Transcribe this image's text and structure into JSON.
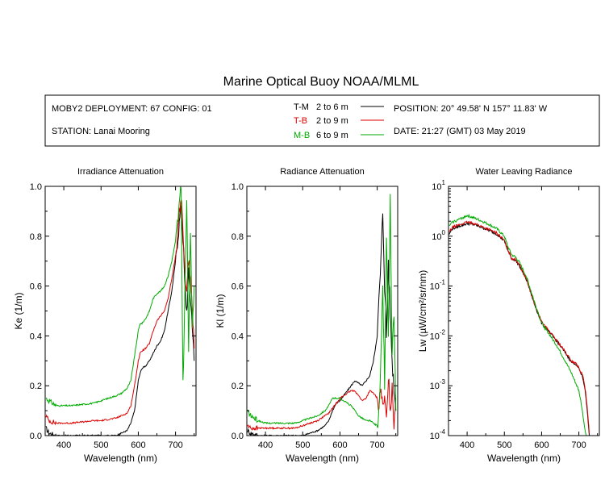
{
  "page": {
    "title": "Marine Optical Buoy NOAA/MLML",
    "info": {
      "deployment": "MOBY2 DEPLOYMENT: 67 CONFIG: 01",
      "station": "STATION: Lanai Mooring",
      "position": "POSITION: 20° 49.58' N   157° 11.83' W",
      "date": "DATE: 21:27 (GMT) 03 May 2019"
    },
    "legend": [
      {
        "code": "T-M",
        "range": "2 to 6  m",
        "color": "#000000"
      },
      {
        "code": "T-B",
        "range": "2 to 9  m",
        "color": "#dd0000"
      },
      {
        "code": "M-B",
        "range": "6 to 9  m",
        "color": "#00aa00"
      }
    ]
  },
  "chart_data": [
    {
      "type": "line",
      "title": "Irradiance Attenuation",
      "xlabel": "Wavelength (nm)",
      "ylabel": "Ke  (1/m)",
      "xlim": [
        350,
        755
      ],
      "ylim": [
        0,
        1.0
      ],
      "xticks": [
        400,
        500,
        600,
        700
      ],
      "yticks": [
        0.0,
        0.2,
        0.4,
        0.6,
        0.8,
        1.0
      ],
      "ytick_labels": [
        "0.0",
        "0.2",
        "0.4",
        "0.6",
        "0.8",
        "1.0"
      ],
      "series": [
        {
          "name": "T-M",
          "color": "#000000",
          "x": [
            352,
            360,
            380,
            400,
            420,
            450,
            480,
            500,
            520,
            540,
            555,
            570,
            580,
            590,
            600,
            605,
            610,
            620,
            630,
            640,
            650,
            660,
            670,
            680,
            690,
            700,
            705,
            710,
            715,
            720,
            725,
            730,
            735,
            740,
            745,
            750
          ],
          "y": [
            0.03,
            0.01,
            0.0,
            0.0,
            0.0,
            0.0,
            0.0,
            0.0,
            0.0,
            0.0,
            0.01,
            0.02,
            0.05,
            0.1,
            0.22,
            0.25,
            0.27,
            0.28,
            0.3,
            0.33,
            0.36,
            0.38,
            0.42,
            0.5,
            0.58,
            0.7,
            0.78,
            0.85,
            0.92,
            0.8,
            0.6,
            0.5,
            0.65,
            0.55,
            0.45,
            0.3
          ]
        },
        {
          "name": "T-B",
          "color": "#dd0000",
          "x": [
            352,
            360,
            380,
            400,
            420,
            450,
            480,
            500,
            520,
            540,
            555,
            570,
            580,
            590,
            600,
            605,
            610,
            620,
            630,
            640,
            650,
            660,
            670,
            680,
            690,
            700,
            705,
            710,
            715,
            720,
            725,
            730,
            735,
            740,
            745,
            750
          ],
          "y": [
            0.08,
            0.06,
            0.05,
            0.05,
            0.05,
            0.055,
            0.06,
            0.06,
            0.065,
            0.07,
            0.08,
            0.09,
            0.12,
            0.2,
            0.3,
            0.33,
            0.34,
            0.35,
            0.37,
            0.42,
            0.46,
            0.48,
            0.5,
            0.55,
            0.63,
            0.72,
            0.8,
            0.9,
            0.96,
            0.82,
            0.65,
            0.58,
            0.72,
            0.6,
            0.5,
            0.35
          ]
        },
        {
          "name": "M-B",
          "color": "#00aa00",
          "x": [
            352,
            360,
            380,
            400,
            420,
            450,
            480,
            500,
            520,
            540,
            555,
            570,
            580,
            590,
            600,
            605,
            610,
            620,
            630,
            640,
            650,
            660,
            670,
            680,
            690,
            700,
            705,
            710,
            715,
            720,
            725,
            730,
            735,
            740,
            745,
            750
          ],
          "y": [
            0.15,
            0.14,
            0.12,
            0.12,
            0.12,
            0.125,
            0.13,
            0.14,
            0.15,
            0.16,
            0.17,
            0.19,
            0.22,
            0.32,
            0.42,
            0.45,
            0.45,
            0.47,
            0.5,
            0.55,
            0.57,
            0.58,
            0.6,
            0.64,
            0.7,
            0.78,
            0.85,
            0.92,
            1.0,
            0.2,
            0.55,
            0.95,
            0.35,
            0.8,
            0.45,
            0.6
          ]
        }
      ]
    },
    {
      "type": "line",
      "title": "Radiance Attenuation",
      "xlabel": "Wavelength (nm)",
      "ylabel": "Kl  (1/m)",
      "xlim": [
        350,
        755
      ],
      "ylim": [
        0,
        1.0
      ],
      "xticks": [
        400,
        500,
        600,
        700
      ],
      "yticks": [
        0.0,
        0.2,
        0.4,
        0.6,
        0.8,
        1.0
      ],
      "ytick_labels": [
        "0.0",
        "0.2",
        "0.4",
        "0.6",
        "0.8",
        "1.0"
      ],
      "series": [
        {
          "name": "T-M",
          "color": "#000000",
          "x": [
            352,
            360,
            380,
            400,
            420,
            450,
            480,
            500,
            520,
            540,
            560,
            570,
            580,
            590,
            600,
            610,
            620,
            630,
            640,
            650,
            660,
            670,
            680,
            690,
            700,
            705,
            710,
            715,
            720,
            725,
            730,
            735,
            740,
            745,
            750
          ],
          "y": [
            0.02,
            0.01,
            0.0,
            0.0,
            0.0,
            0.0,
            0.0,
            0.0,
            0.01,
            0.02,
            0.04,
            0.06,
            0.1,
            0.13,
            0.14,
            0.16,
            0.18,
            0.2,
            0.22,
            0.21,
            0.2,
            0.22,
            0.24,
            0.3,
            0.4,
            0.55,
            0.7,
            0.9,
            0.6,
            0.4,
            0.7,
            0.5,
            0.3,
            0.2,
            0.1
          ]
        },
        {
          "name": "T-B",
          "color": "#dd0000",
          "x": [
            352,
            360,
            380,
            400,
            420,
            450,
            480,
            500,
            520,
            540,
            560,
            570,
            580,
            590,
            600,
            610,
            620,
            630,
            640,
            650,
            660,
            670,
            680,
            690,
            700,
            705,
            710,
            715,
            720,
            725,
            730,
            735,
            740,
            745,
            750
          ],
          "y": [
            0.04,
            0.03,
            0.03,
            0.03,
            0.03,
            0.03,
            0.03,
            0.04,
            0.05,
            0.06,
            0.08,
            0.09,
            0.11,
            0.13,
            0.15,
            0.16,
            0.17,
            0.18,
            0.18,
            0.16,
            0.14,
            0.15,
            0.18,
            0.17,
            0.15,
            0.12,
            0.2,
            0.1,
            0.15,
            0.05,
            0.25,
            0.1,
            0.2,
            0.05,
            0.15
          ]
        },
        {
          "name": "M-B",
          "color": "#00aa00",
          "x": [
            352,
            360,
            380,
            400,
            420,
            450,
            480,
            500,
            520,
            540,
            560,
            570,
            580,
            590,
            600,
            610,
            620,
            630,
            640,
            650,
            660,
            670,
            680,
            690,
            700,
            705,
            710,
            715,
            720,
            725,
            730,
            735,
            740,
            745,
            750
          ],
          "y": [
            0.1,
            0.08,
            0.06,
            0.05,
            0.05,
            0.05,
            0.05,
            0.06,
            0.07,
            0.08,
            0.1,
            0.12,
            0.15,
            0.15,
            0.15,
            0.14,
            0.13,
            0.12,
            0.1,
            0.08,
            0.07,
            0.06,
            0.06,
            0.05,
            0.04,
            0.1,
            0.3,
            0.6,
            0.2,
            0.8,
            0.4,
            0.95,
            0.3,
            0.5,
            0.1
          ]
        }
      ]
    },
    {
      "type": "line",
      "title": "Water Leaving Radiance",
      "xlabel": "Wavelength (nm)",
      "ylabel": "Lw  (µW/cm²/sr/nm)",
      "yscale": "log",
      "xlim": [
        350,
        755
      ],
      "ylim": [
        0.0001,
        10
      ],
      "xticks": [
        400,
        500,
        600,
        700
      ],
      "yticks": [
        0.0001,
        0.001,
        0.01,
        0.1,
        1,
        10
      ],
      "ytick_base": [
        "10",
        "10",
        "10",
        "10",
        "10",
        "10"
      ],
      "ytick_exp": [
        "-4",
        "-3",
        "-2",
        "-1",
        "0",
        "1"
      ],
      "series": [
        {
          "name": "T-M",
          "color": "#000000",
          "x": [
            352,
            360,
            380,
            400,
            420,
            440,
            460,
            480,
            500,
            510,
            520,
            530,
            540,
            560,
            580,
            600,
            620,
            640,
            660,
            680,
            690,
            700,
            710,
            715,
            720,
            725,
            728
          ],
          "y": [
            1.1,
            1.4,
            1.6,
            1.8,
            1.7,
            1.5,
            1.3,
            1.1,
            0.8,
            0.5,
            0.35,
            0.33,
            0.26,
            0.13,
            0.045,
            0.018,
            0.012,
            0.008,
            0.005,
            0.003,
            0.0028,
            0.0022,
            0.0015,
            0.001,
            0.0005,
            0.0002,
            0.0001
          ]
        },
        {
          "name": "T-B",
          "color": "#dd0000",
          "x": [
            352,
            360,
            380,
            400,
            420,
            440,
            460,
            480,
            500,
            510,
            520,
            530,
            540,
            560,
            580,
            600,
            620,
            640,
            660,
            680,
            690,
            700,
            710,
            715,
            720,
            725,
            728
          ],
          "y": [
            1.2,
            1.5,
            1.7,
            1.9,
            1.8,
            1.55,
            1.35,
            1.15,
            0.82,
            0.52,
            0.36,
            0.34,
            0.27,
            0.135,
            0.046,
            0.019,
            0.0125,
            0.0082,
            0.0052,
            0.0031,
            0.0029,
            0.0023,
            0.0016,
            0.0011,
            0.00055,
            0.00022,
            0.00011
          ]
        },
        {
          "name": "M-B",
          "color": "#00aa00",
          "x": [
            352,
            360,
            380,
            400,
            420,
            440,
            460,
            480,
            500,
            510,
            520,
            530,
            540,
            560,
            580,
            600,
            620,
            640,
            660,
            680,
            690,
            700,
            705,
            710,
            715,
            720
          ],
          "y": [
            1.6,
            1.9,
            2.2,
            2.6,
            2.3,
            2.0,
            1.7,
            1.4,
            1.0,
            0.6,
            0.42,
            0.38,
            0.3,
            0.15,
            0.05,
            0.018,
            0.011,
            0.0065,
            0.0035,
            0.0018,
            0.0012,
            0.0008,
            0.0005,
            0.0003,
            0.00015,
            0.0001
          ]
        }
      ]
    }
  ]
}
